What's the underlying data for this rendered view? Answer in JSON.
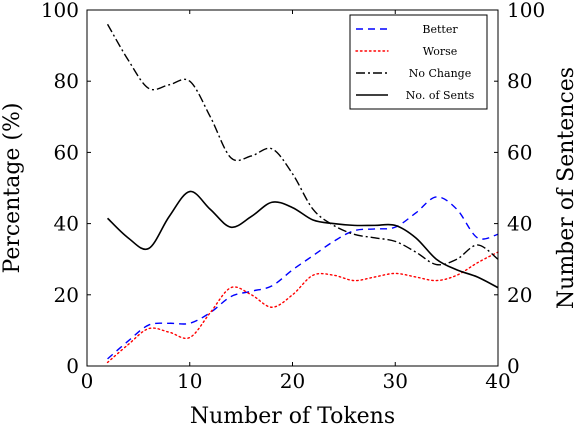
{
  "chart_data": {
    "type": "line",
    "xlabel": "Number of Tokens",
    "ylabel_left": "Percentage (%)",
    "ylabel_right": "Number of Sentences",
    "xlim": [
      0,
      40
    ],
    "ylim": [
      0,
      100
    ],
    "ylim_right": [
      0,
      100
    ],
    "xticks": [
      0,
      10,
      20,
      30,
      40
    ],
    "yticks": [
      0,
      20,
      40,
      60,
      80,
      100
    ],
    "yticks_right": [
      0,
      20,
      40,
      60,
      80,
      100
    ],
    "legend_position": "top-right",
    "series": [
      {
        "name": "Better",
        "axis": "left",
        "color": "#0000ff",
        "dash": "dashed",
        "x": [
          2,
          4,
          6,
          8,
          10,
          12,
          14,
          16,
          18,
          20,
          22,
          24,
          26,
          28,
          30,
          32,
          34,
          36,
          38,
          40
        ],
        "y": [
          2,
          7,
          11.5,
          12,
          12,
          15,
          19.5,
          21,
          22.5,
          27,
          31,
          35,
          38,
          38.5,
          39,
          43,
          47.5,
          44,
          36,
          37
        ]
      },
      {
        "name": "Worse",
        "axis": "left",
        "color": "#ff0000",
        "dash": "dotted",
        "x": [
          2,
          4,
          6,
          8,
          10,
          12,
          14,
          16,
          18,
          20,
          22,
          24,
          26,
          28,
          30,
          32,
          34,
          36,
          38,
          40
        ],
        "y": [
          1,
          6,
          10.5,
          9.5,
          8,
          15,
          22,
          20,
          16.5,
          20,
          25.5,
          25.5,
          24,
          25,
          26,
          25,
          24,
          25.5,
          29,
          32
        ]
      },
      {
        "name": "No Change",
        "axis": "left",
        "color": "#000000",
        "dash": "dashdot",
        "x": [
          2,
          4,
          6,
          8,
          10,
          12,
          14,
          16,
          18,
          20,
          22,
          24,
          26,
          28,
          30,
          32,
          34,
          36,
          38,
          40
        ],
        "y": [
          96,
          86,
          78,
          79,
          80,
          70,
          58.5,
          59,
          61,
          54,
          44,
          39.5,
          37,
          36,
          35,
          32,
          28.5,
          30,
          34,
          30
        ]
      },
      {
        "name": "No. of Sents",
        "axis": "right",
        "color": "#000000",
        "dash": "solid",
        "x": [
          2,
          4,
          6,
          8,
          10,
          12,
          14,
          16,
          18,
          20,
          22,
          24,
          26,
          28,
          30,
          32,
          34,
          36,
          38,
          40
        ],
        "y": [
          41.5,
          36,
          33,
          42,
          49,
          44,
          39,
          42,
          46,
          44.5,
          41,
          40,
          39.5,
          39.5,
          39.5,
          36,
          30,
          27,
          25,
          22
        ]
      }
    ]
  }
}
